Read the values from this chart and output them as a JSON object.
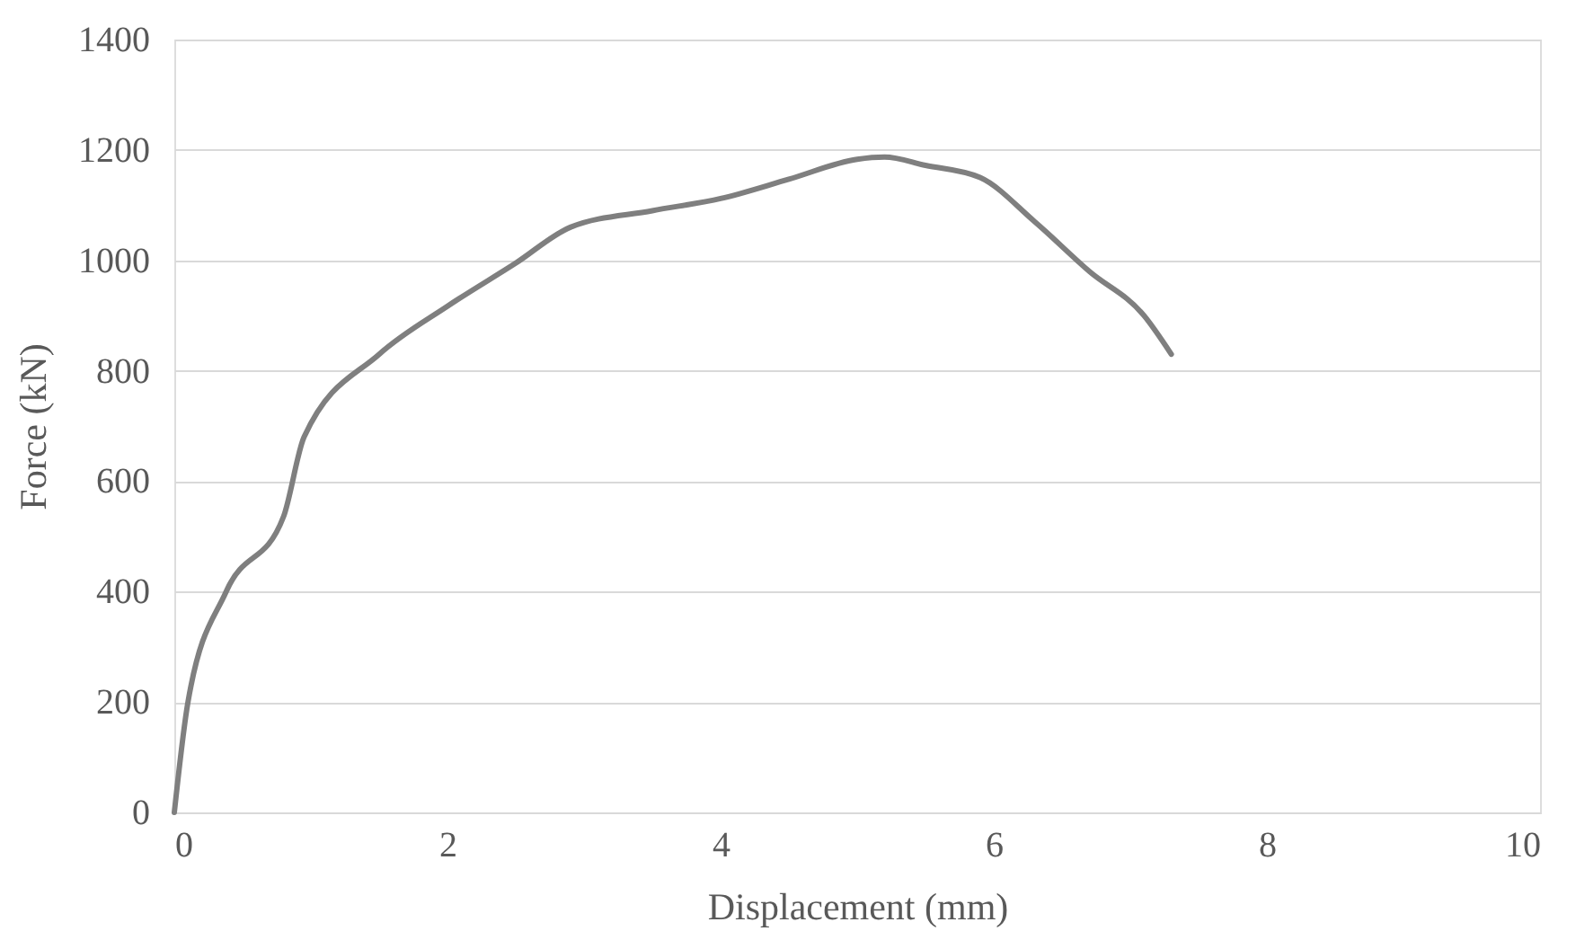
{
  "chart_data": {
    "type": "line",
    "xlabel": "Displacement (mm)",
    "ylabel": "Force (kN)",
    "xlim": [
      0,
      10
    ],
    "xticks": [
      0,
      2,
      4,
      6,
      8,
      10
    ],
    "ylim": [
      0,
      1400
    ],
    "yticks": [
      0,
      200,
      400,
      600,
      800,
      1000,
      1200,
      1400
    ],
    "grid": "y",
    "marker": "none",
    "line_style": "solid",
    "series": [
      {
        "color": "#7f7f7f",
        "x": [
          0,
          0.1,
          0.38,
          0.8,
          0.95,
          1.5,
          2,
          2.5,
          2.9,
          3.5,
          4,
          4.5,
          5,
          5.2,
          5.5,
          5.9,
          6.3,
          6.7,
          7.1,
          7.3
        ],
        "values": [
          0,
          200,
          400,
          536,
          680,
          830,
          917,
          995,
          1060,
          1090,
          1112,
          1147,
          1183,
          1187,
          1172,
          1150,
          1070,
          980,
          900,
          830
        ]
      }
    ]
  }
}
